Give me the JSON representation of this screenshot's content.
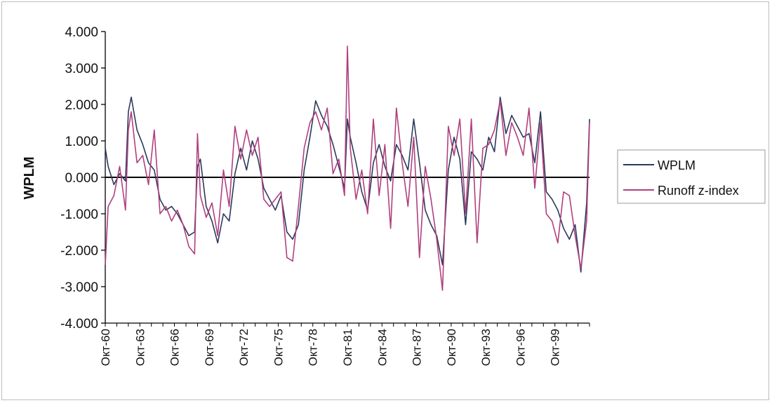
{
  "chart_data": {
    "type": "line",
    "title": "",
    "xlabel": "",
    "ylabel": "WPLM",
    "ylim": [
      -4,
      4
    ],
    "y_ticks": [
      "4.000",
      "3.000",
      "2.000",
      "1.000",
      "0.000",
      "-1.000",
      "-2.000",
      "-3.000",
      "-4.000"
    ],
    "x_tick_labels": [
      "Окт-60",
      "Окт-63",
      "Окт-66",
      "Окт-69",
      "Окт-72",
      "Окт-75",
      "Окт-78",
      "Окт-81",
      "Окт-84",
      "Окт-87",
      "Окт-90",
      "Окт-93",
      "Окт-96",
      "Окт-99"
    ],
    "x_range": [
      1960.75,
      2002.75
    ],
    "grid": false,
    "legend_position": "right",
    "series": [
      {
        "name": "WPLM",
        "color": "#2b3a5c",
        "x": [
          1960.75,
          1961.0,
          1961.5,
          1962.0,
          1962.5,
          1962.75,
          1963.0,
          1963.5,
          1964.0,
          1964.5,
          1965.0,
          1965.5,
          1966.0,
          1966.5,
          1967.0,
          1967.5,
          1968.0,
          1968.5,
          1968.75,
          1969.0,
          1969.5,
          1970.0,
          1970.5,
          1971.0,
          1971.5,
          1972.0,
          1972.5,
          1973.0,
          1973.5,
          1974.0,
          1974.5,
          1975.0,
          1975.5,
          1976.0,
          1976.5,
          1977.0,
          1977.5,
          1978.0,
          1978.5,
          1979.0,
          1979.5,
          1980.0,
          1980.5,
          1981.0,
          1981.5,
          1981.75,
          1982.0,
          1982.5,
          1983.0,
          1983.5,
          1984.0,
          1984.5,
          1985.0,
          1985.5,
          1986.0,
          1986.5,
          1987.0,
          1987.5,
          1988.0,
          1988.5,
          1989.0,
          1989.5,
          1990.0,
          1990.5,
          1991.0,
          1991.5,
          1992.0,
          1992.5,
          1993.0,
          1993.5,
          1994.0,
          1994.5,
          1995.0,
          1995.5,
          1996.0,
          1996.5,
          1997.0,
          1997.5,
          1998.0,
          1998.5,
          1999.0,
          1999.5,
          2000.0,
          2000.5,
          2001.0,
          2001.5,
          2002.0,
          2002.5,
          2002.75
        ],
        "values": [
          0.8,
          0.3,
          -0.2,
          0.1,
          -0.1,
          1.8,
          2.2,
          1.3,
          0.9,
          0.4,
          0.2,
          -0.6,
          -0.9,
          -0.8,
          -1.0,
          -1.3,
          -1.6,
          -1.5,
          0.3,
          0.5,
          -0.8,
          -1.2,
          -1.8,
          -1.0,
          -1.2,
          0.1,
          0.8,
          0.2,
          1.0,
          0.5,
          -0.3,
          -0.6,
          -0.9,
          -0.5,
          -1.5,
          -1.7,
          -1.3,
          0.2,
          1.1,
          2.1,
          1.7,
          1.4,
          0.9,
          0.3,
          -0.3,
          1.6,
          1.1,
          0.4,
          -0.4,
          -0.9,
          0.4,
          0.9,
          0.3,
          -0.1,
          0.9,
          0.6,
          0.2,
          1.6,
          0.4,
          -0.9,
          -1.3,
          -1.6,
          -2.4,
          0.2,
          1.1,
          0.5,
          -1.3,
          0.7,
          0.5,
          0.2,
          1.1,
          0.7,
          2.2,
          1.2,
          1.7,
          1.4,
          1.1,
          1.2,
          0.4,
          1.8,
          -0.4,
          -0.6,
          -0.9,
          -1.4,
          -1.7,
          -1.3,
          -2.6,
          -0.7,
          1.6
        ]
      },
      {
        "name": "Runoff z-index",
        "color": "#b0407f",
        "x": [
          1960.75,
          1961.0,
          1961.5,
          1962.0,
          1962.5,
          1962.75,
          1963.0,
          1963.5,
          1964.0,
          1964.5,
          1965.0,
          1965.5,
          1966.0,
          1966.5,
          1967.0,
          1967.5,
          1968.0,
          1968.5,
          1968.75,
          1969.0,
          1969.5,
          1970.0,
          1970.5,
          1971.0,
          1971.5,
          1972.0,
          1972.5,
          1973.0,
          1973.5,
          1974.0,
          1974.5,
          1975.0,
          1975.5,
          1976.0,
          1976.5,
          1977.0,
          1977.5,
          1978.0,
          1978.5,
          1979.0,
          1979.5,
          1980.0,
          1980.5,
          1981.0,
          1981.5,
          1981.75,
          1982.0,
          1982.5,
          1983.0,
          1983.5,
          1984.0,
          1984.5,
          1985.0,
          1985.5,
          1986.0,
          1986.5,
          1987.0,
          1987.5,
          1988.0,
          1988.5,
          1989.0,
          1989.5,
          1990.0,
          1990.5,
          1991.0,
          1991.5,
          1992.0,
          1992.5,
          1993.0,
          1993.5,
          1994.0,
          1994.5,
          1995.0,
          1995.5,
          1996.0,
          1996.5,
          1997.0,
          1997.5,
          1998.0,
          1998.5,
          1999.0,
          1999.5,
          2000.0,
          2000.5,
          2001.0,
          2001.5,
          2002.0,
          2002.5,
          2002.75
        ],
        "values": [
          -2.4,
          -0.8,
          -0.5,
          0.3,
          -0.9,
          1.3,
          1.8,
          0.4,
          0.6,
          -0.2,
          1.3,
          -1.0,
          -0.8,
          -1.2,
          -0.9,
          -1.3,
          -1.9,
          -2.1,
          1.2,
          -0.5,
          -1.1,
          -0.7,
          -1.6,
          0.2,
          -0.8,
          1.4,
          0.5,
          1.3,
          0.6,
          1.1,
          -0.6,
          -0.8,
          -0.6,
          -0.4,
          -2.2,
          -2.3,
          -0.8,
          0.8,
          1.5,
          1.8,
          1.3,
          1.9,
          0.1,
          0.5,
          -0.5,
          3.6,
          0.8,
          -0.6,
          0.2,
          -1.0,
          1.6,
          -0.5,
          0.9,
          -1.4,
          1.9,
          0.4,
          -0.8,
          1.1,
          -2.2,
          0.3,
          -0.6,
          -1.7,
          -3.1,
          1.4,
          0.6,
          1.6,
          -1.0,
          1.6,
          -1.8,
          0.8,
          0.9,
          1.3,
          2.1,
          0.6,
          1.5,
          1.1,
          0.6,
          1.9,
          -0.3,
          1.5,
          -1.0,
          -1.2,
          -1.8,
          -0.4,
          -0.5,
          -1.6,
          -2.5,
          -1.2,
          1.5
        ]
      }
    ]
  }
}
